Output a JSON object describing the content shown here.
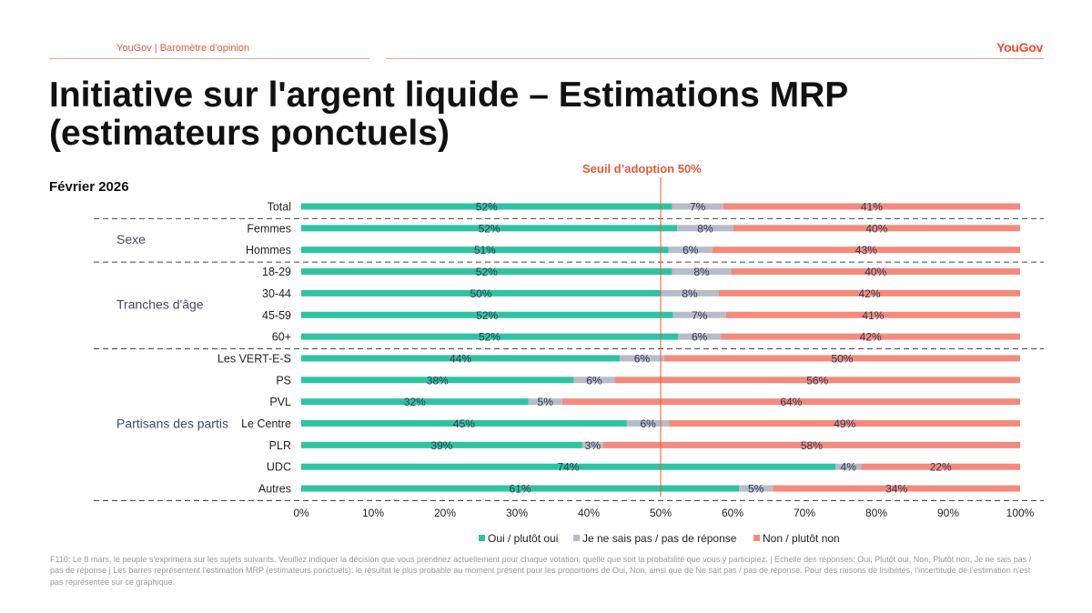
{
  "header": {
    "left_label": "YouGov | Baromètre d’opinion",
    "logo": "YouGov"
  },
  "title": "Initiative sur l'argent liquide – Estimations MRP (estimateurs ponctuels)",
  "date": "Février 2026",
  "threshold_label": "Seuil d’adoption 50%",
  "footnote": "F110: Le 8 mars, le peuple s’exprimera sur les sujets suivants. Veuillez indiquer la décision que vous prendriez actuellement pour chaque votation, quelle que soit la probabilité que vous y participiez. | Echelle des réponses: Oui, Plutôt oui, Non, Plutôt non, Je ne sais pas / pas de réponse | Les barres représentent l’estimation MRP (estimateurs ponctuels): le résultat le plus probable au moment présent pour les proportions de Oui, Non, ainsi que de Ne sait pas / pas de réponse. Pour des raisons de lisibilités, l’incertitude de l’estimation n’est pas représentée sur ce graphique.",
  "chart_data": {
    "type": "bar",
    "orientation": "horizontal",
    "stacked": "100%",
    "categories": [
      "Total",
      "Femmes",
      "Hommes",
      "18-29",
      "30-44",
      "45-59",
      "60+",
      "Les VERT-E-S",
      "PS",
      "PVL",
      "Le Centre",
      "PLR",
      "UDC",
      "Autres"
    ],
    "groups": [
      {
        "label": "Sexe",
        "categories": [
          "Femmes",
          "Hommes"
        ]
      },
      {
        "label": "Tranches d'âge",
        "categories": [
          "18-29",
          "30-44",
          "45-59",
          "60+"
        ]
      },
      {
        "label": "Partisans des partis",
        "categories": [
          "Les VERT-E-S",
          "PS",
          "PVL",
          "Le Centre",
          "PLR",
          "UDC",
          "Autres"
        ]
      }
    ],
    "series": [
      {
        "name": "Oui / plutôt oui",
        "color": "#2ec4a0",
        "values": [
          51.6,
          52.3,
          51.1,
          51.6,
          50.0,
          51.7,
          52.4,
          44.3,
          37.9,
          31.6,
          45.3,
          39.1,
          74.3,
          60.9
        ]
      },
      {
        "name": "Je ne sais pas / pas de réponse",
        "color": "#b8bcc8",
        "values": [
          7.1,
          7.8,
          6.1,
          8.2,
          8.1,
          7.4,
          6.0,
          6.2,
          5.7,
          4.7,
          5.9,
          2.9,
          3.6,
          4.7
        ]
      },
      {
        "name": "Non / plutôt non",
        "color": "#f48a7c",
        "values": [
          41.3,
          39.9,
          42.8,
          40.2,
          41.9,
          40.9,
          41.6,
          49.5,
          56.4,
          63.7,
          48.8,
          58.0,
          22.1,
          34.4
        ]
      }
    ],
    "data_labels": [
      [
        "52%",
        "7%",
        "41%"
      ],
      [
        "52%",
        "8%",
        "40%"
      ],
      [
        "51%",
        "6%",
        "43%"
      ],
      [
        "52%",
        "8%",
        "40%"
      ],
      [
        "50%",
        "8%",
        "42%"
      ],
      [
        "52%",
        "7%",
        "41%"
      ],
      [
        "52%",
        "6%",
        "42%"
      ],
      [
        "44%",
        "6%",
        "50%"
      ],
      [
        "38%",
        "6%",
        "56%"
      ],
      [
        "32%",
        "5%",
        "64%"
      ],
      [
        "45%",
        "6%",
        "49%"
      ],
      [
        "39%",
        "3%",
        "58%"
      ],
      [
        "74%",
        "4%",
        "22%"
      ],
      [
        "61%",
        "5%",
        "34%"
      ]
    ],
    "x_ticks": [
      "0%",
      "10%",
      "20%",
      "30%",
      "40%",
      "50%",
      "60%",
      "70%",
      "80%",
      "90%",
      "100%"
    ],
    "xlim": [
      0,
      100
    ],
    "threshold": 50,
    "threshold_color": "#e05a3c",
    "legend_position": "bottom",
    "grid": false
  }
}
